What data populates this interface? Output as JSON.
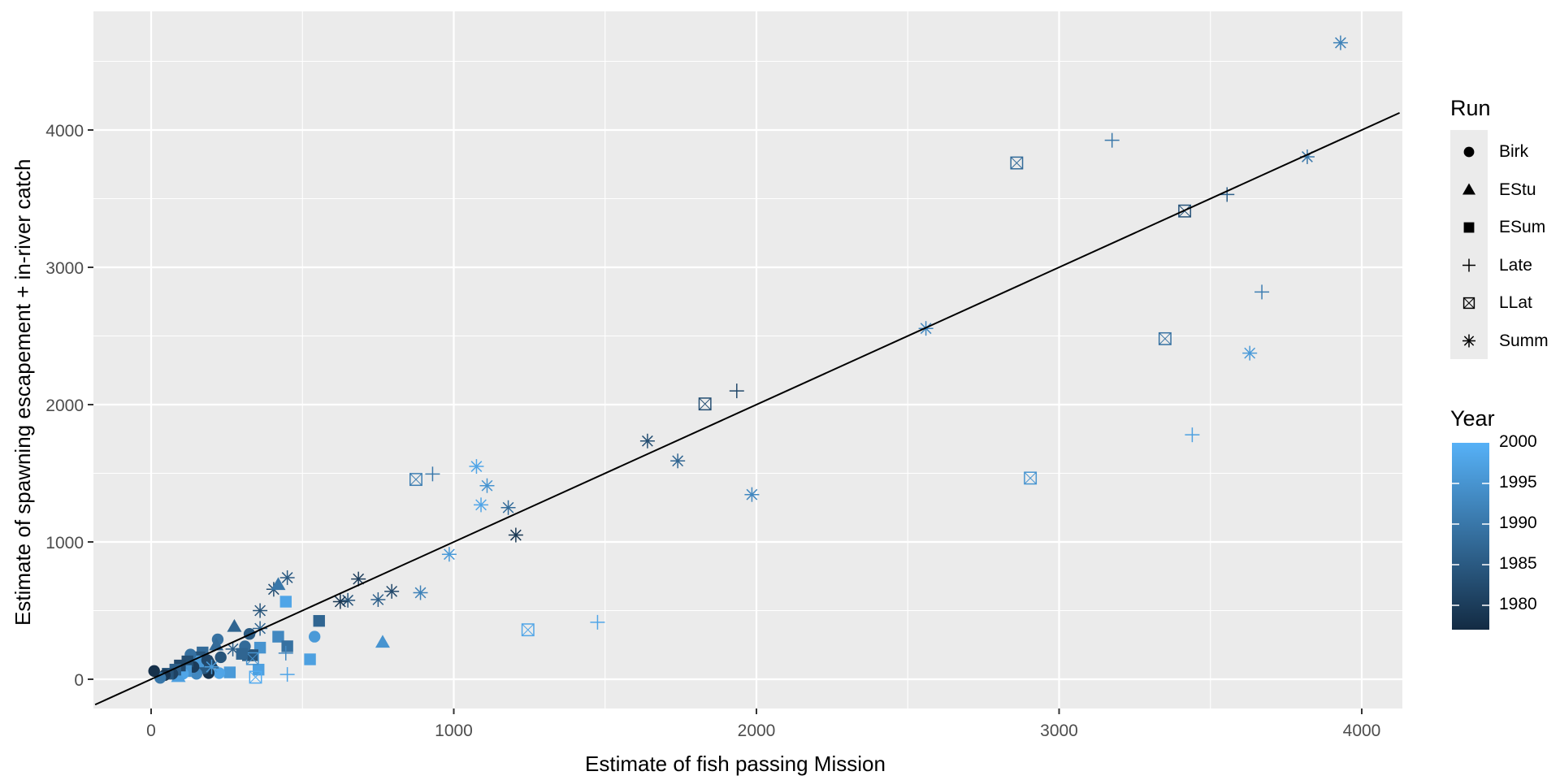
{
  "chart_data": {
    "type": "scatter",
    "title": "",
    "xlabel": "Estimate of fish passing Mission",
    "ylabel": "Estimate of spawning escapement + in-river catch",
    "xlim": [
      -185,
      4125
    ],
    "ylim": [
      -200,
      4775
    ],
    "x_ticks": [
      0,
      1000,
      2000,
      3000,
      4000
    ],
    "y_ticks": [
      0,
      1000,
      2000,
      3000,
      4000
    ],
    "grid": true,
    "reference_line": {
      "slope": 1,
      "intercept": 0,
      "color": "#000000"
    },
    "legend_shape": {
      "title": "Run",
      "entries": [
        {
          "label": "Birk",
          "shape": "circle"
        },
        {
          "label": "EStu",
          "shape": "triangle"
        },
        {
          "label": "ESum",
          "shape": "square"
        },
        {
          "label": "Late",
          "shape": "plus"
        },
        {
          "label": "LLat",
          "shape": "boxed-x"
        },
        {
          "label": "Summ",
          "shape": "asterisk"
        }
      ]
    },
    "legend_color": {
      "title": "Year",
      "ticks": [
        2000,
        1995,
        1990,
        1985,
        1980
      ],
      "low_color": "#132b43",
      "high_color": "#56b1f7",
      "range": [
        1977,
        2000
      ]
    },
    "points": [
      {
        "x": 3930,
        "y": 4635,
        "run": "Summ",
        "year": 1992
      },
      {
        "x": 3175,
        "y": 3925,
        "run": "Late",
        "year": 1990
      },
      {
        "x": 2860,
        "y": 3760,
        "run": "LLat",
        "year": 1988
      },
      {
        "x": 3820,
        "y": 3805,
        "run": "Summ",
        "year": 1990
      },
      {
        "x": 3555,
        "y": 3530,
        "run": "Late",
        "year": 1986
      },
      {
        "x": 3415,
        "y": 3410,
        "run": "LLat",
        "year": 1984
      },
      {
        "x": 3670,
        "y": 2820,
        "run": "Late",
        "year": 1991
      },
      {
        "x": 3350,
        "y": 2480,
        "run": "LLat",
        "year": 1989
      },
      {
        "x": 3630,
        "y": 2375,
        "run": "Summ",
        "year": 1996
      },
      {
        "x": 2560,
        "y": 2555,
        "run": "Summ",
        "year": 1993
      },
      {
        "x": 3440,
        "y": 1780,
        "run": "Late",
        "year": 1997
      },
      {
        "x": 2905,
        "y": 1465,
        "run": "LLat",
        "year": 1995
      },
      {
        "x": 1935,
        "y": 2100,
        "run": "Late",
        "year": 1982
      },
      {
        "x": 1830,
        "y": 2005,
        "run": "LLat",
        "year": 1983
      },
      {
        "x": 1640,
        "y": 1735,
        "run": "Summ",
        "year": 1983
      },
      {
        "x": 1740,
        "y": 1590,
        "run": "Summ",
        "year": 1987
      },
      {
        "x": 1985,
        "y": 1345,
        "run": "Summ",
        "year": 1993
      },
      {
        "x": 875,
        "y": 1455,
        "run": "LLat",
        "year": 1991
      },
      {
        "x": 930,
        "y": 1495,
        "run": "Late",
        "year": 1990
      },
      {
        "x": 1075,
        "y": 1550,
        "run": "Summ",
        "year": 1998
      },
      {
        "x": 1110,
        "y": 1410,
        "run": "Summ",
        "year": 1995
      },
      {
        "x": 1090,
        "y": 1270,
        "run": "Summ",
        "year": 1998
      },
      {
        "x": 1180,
        "y": 1250,
        "run": "Summ",
        "year": 1988
      },
      {
        "x": 1205,
        "y": 1050,
        "run": "Summ",
        "year": 1979
      },
      {
        "x": 985,
        "y": 910,
        "run": "Summ",
        "year": 1996
      },
      {
        "x": 1245,
        "y": 360,
        "run": "LLat",
        "year": 1998
      },
      {
        "x": 1475,
        "y": 415,
        "run": "Late",
        "year": 1998
      },
      {
        "x": 890,
        "y": 630,
        "run": "Summ",
        "year": 1992
      },
      {
        "x": 795,
        "y": 640,
        "run": "Summ",
        "year": 1982
      },
      {
        "x": 750,
        "y": 580,
        "run": "Summ",
        "year": 1986
      },
      {
        "x": 685,
        "y": 730,
        "run": "Summ",
        "year": 1980
      },
      {
        "x": 650,
        "y": 575,
        "run": "Summ",
        "year": 1984
      },
      {
        "x": 625,
        "y": 565,
        "run": "Summ",
        "year": 1979
      },
      {
        "x": 765,
        "y": 270,
        "run": "EStu",
        "year": 1995
      },
      {
        "x": 540,
        "y": 310,
        "run": "Birk",
        "year": 1996
      },
      {
        "x": 525,
        "y": 145,
        "run": "ESum",
        "year": 1997
      },
      {
        "x": 555,
        "y": 425,
        "run": "ESum",
        "year": 1987
      },
      {
        "x": 445,
        "y": 565,
        "run": "ESum",
        "year": 1998
      },
      {
        "x": 450,
        "y": 740,
        "run": "Summ",
        "year": 1985
      },
      {
        "x": 405,
        "y": 655,
        "run": "Summ",
        "year": 1983
      },
      {
        "x": 420,
        "y": 690,
        "run": "EStu",
        "year": 1990
      },
      {
        "x": 360,
        "y": 500,
        "run": "Summ",
        "year": 1984
      },
      {
        "x": 360,
        "y": 370,
        "run": "Summ",
        "year": 1987
      },
      {
        "x": 275,
        "y": 385,
        "run": "EStu",
        "year": 1987
      },
      {
        "x": 270,
        "y": 220,
        "run": "Summ",
        "year": 1986
      },
      {
        "x": 420,
        "y": 310,
        "run": "ESum",
        "year": 1993
      },
      {
        "x": 450,
        "y": 240,
        "run": "ESum",
        "year": 1989
      },
      {
        "x": 445,
        "y": 190,
        "run": "Late",
        "year": 1993
      },
      {
        "x": 450,
        "y": 35,
        "run": "Late",
        "year": 1998
      },
      {
        "x": 360,
        "y": 230,
        "run": "ESum",
        "year": 1995
      },
      {
        "x": 355,
        "y": 70,
        "run": "ESum",
        "year": 1997
      },
      {
        "x": 345,
        "y": 15,
        "run": "LLat",
        "year": 1999
      },
      {
        "x": 325,
        "y": 330,
        "run": "Birk",
        "year": 1985
      },
      {
        "x": 320,
        "y": 175,
        "run": "ESum",
        "year": 1986
      },
      {
        "x": 335,
        "y": 175,
        "run": "ESum",
        "year": 1984
      },
      {
        "x": 335,
        "y": 150,
        "run": "LLat",
        "year": 1995
      },
      {
        "x": 310,
        "y": 240,
        "run": "Birk",
        "year": 1988
      },
      {
        "x": 300,
        "y": 185,
        "run": "ESum",
        "year": 1987
      },
      {
        "x": 260,
        "y": 50,
        "run": "ESum",
        "year": 1996
      },
      {
        "x": 230,
        "y": 160,
        "run": "Birk",
        "year": 1984
      },
      {
        "x": 220,
        "y": 290,
        "run": "Birk",
        "year": 1989
      },
      {
        "x": 225,
        "y": 45,
        "run": "Birk",
        "year": 1998
      },
      {
        "x": 200,
        "y": 120,
        "run": "EStu",
        "year": 1982
      },
      {
        "x": 190,
        "y": 45,
        "run": "Birk",
        "year": 1978
      },
      {
        "x": 175,
        "y": 80,
        "run": "Birk",
        "year": 1985
      },
      {
        "x": 170,
        "y": 195,
        "run": "ESum",
        "year": 1988
      },
      {
        "x": 160,
        "y": 160,
        "run": "ESum",
        "year": 1984
      },
      {
        "x": 155,
        "y": 130,
        "run": "ESum",
        "year": 1996
      },
      {
        "x": 150,
        "y": 40,
        "run": "Birk",
        "year": 1993
      },
      {
        "x": 140,
        "y": 90,
        "run": "Birk",
        "year": 1980
      },
      {
        "x": 130,
        "y": 180,
        "run": "Birk",
        "year": 1989
      },
      {
        "x": 120,
        "y": 130,
        "run": "ESum",
        "year": 1983
      },
      {
        "x": 115,
        "y": 60,
        "run": "ESum",
        "year": 1995
      },
      {
        "x": 105,
        "y": 40,
        "run": "Birk",
        "year": 1998
      },
      {
        "x": 95,
        "y": 100,
        "run": "ESum",
        "year": 1982
      },
      {
        "x": 90,
        "y": 20,
        "run": "EStu",
        "year": 1997
      },
      {
        "x": 80,
        "y": 70,
        "run": "ESum",
        "year": 1986
      },
      {
        "x": 70,
        "y": 40,
        "run": "Birk",
        "year": 1981
      },
      {
        "x": 55,
        "y": 40,
        "run": "ESum",
        "year": 1984
      },
      {
        "x": 45,
        "y": 30,
        "run": "Birk",
        "year": 1979
      },
      {
        "x": 30,
        "y": 10,
        "run": "Birk",
        "year": 1990
      },
      {
        "x": 10,
        "y": 60,
        "run": "Birk",
        "year": 1978
      },
      {
        "x": 185,
        "y": 140,
        "run": "Birk",
        "year": 1982
      },
      {
        "x": 200,
        "y": 90,
        "run": "Summ",
        "year": 1996
      },
      {
        "x": 215,
        "y": 250,
        "run": "EStu",
        "year": 1988
      }
    ]
  }
}
